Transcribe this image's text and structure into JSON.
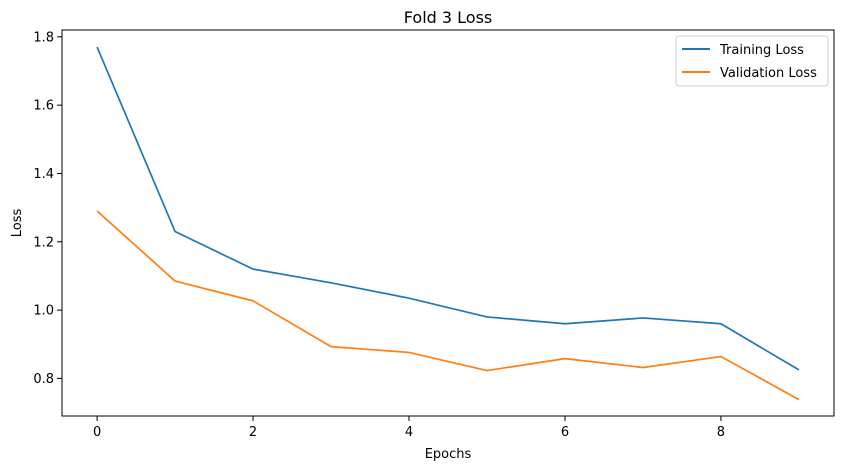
{
  "chart_data": {
    "type": "line",
    "title": "Fold 3 Loss",
    "xlabel": "Epochs",
    "ylabel": "Loss",
    "x": [
      0,
      1,
      2,
      3,
      4,
      5,
      6,
      7,
      8,
      9
    ],
    "xlim": [
      -0.45,
      9.45
    ],
    "ylim": [
      0.69,
      1.82
    ],
    "xticks": [
      0,
      2,
      4,
      6,
      8
    ],
    "xtick_labels": [
      "0",
      "2",
      "4",
      "6",
      "8"
    ],
    "yticks": [
      0.8,
      1.0,
      1.2,
      1.4,
      1.6,
      1.8
    ],
    "ytick_labels": [
      "0.8",
      "1.0",
      "1.2",
      "1.4",
      "1.6",
      "1.8"
    ],
    "grid": false,
    "legend_position": "top-right",
    "series": [
      {
        "name": "Training Loss",
        "color": "#1f77b4",
        "values": [
          1.77,
          1.23,
          1.12,
          1.08,
          1.035,
          0.98,
          0.96,
          0.977,
          0.96,
          0.825
        ]
      },
      {
        "name": "Validation Loss",
        "color": "#ff7f0e",
        "values": [
          1.29,
          1.085,
          1.027,
          0.893,
          0.876,
          0.823,
          0.858,
          0.832,
          0.864,
          0.738
        ]
      }
    ]
  }
}
